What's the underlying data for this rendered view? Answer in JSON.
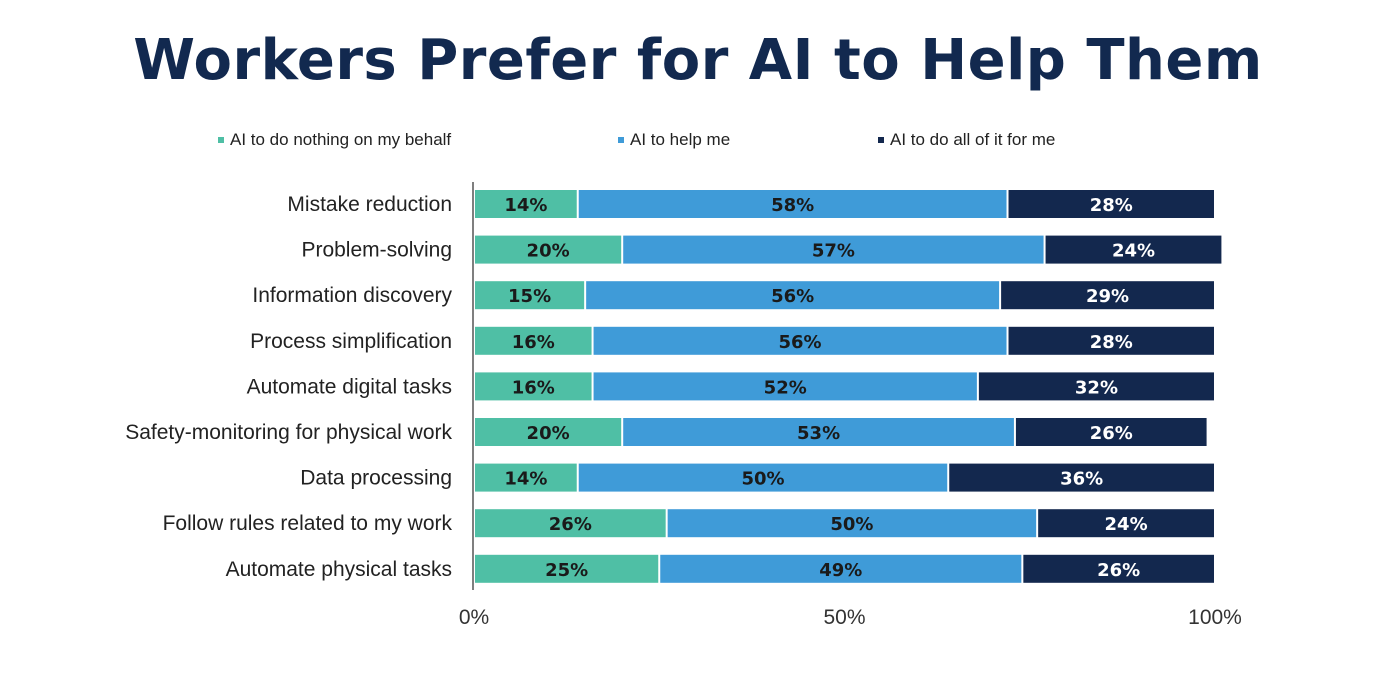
{
  "chart_data": {
    "type": "bar",
    "orientation": "horizontal",
    "stacked": true,
    "title": "Workers Prefer for AI to Help Them",
    "legend_position": "top",
    "categories": [
      "Mistake reduction",
      "Problem-solving",
      "Information discovery",
      "Process simplification",
      "Automate digital tasks",
      "Safety-monitoring for physical work",
      "Data processing",
      "Follow rules related to my work",
      "Automate physical tasks"
    ],
    "series": [
      {
        "name": "AI to do nothing on my behalf",
        "color": "#4fbfa5",
        "label_color": "#1a1a1a",
        "values": [
          14,
          20,
          15,
          16,
          16,
          20,
          14,
          26,
          25
        ]
      },
      {
        "name": "AI to help me",
        "color": "#3f9bd8",
        "label_color": "#1a1a1a",
        "values": [
          58,
          57,
          56,
          56,
          52,
          53,
          50,
          50,
          49
        ]
      },
      {
        "name": "AI to do all of it for me",
        "color": "#13284e",
        "label_color": "#ffffff",
        "values": [
          28,
          24,
          29,
          28,
          32,
          26,
          36,
          24,
          26
        ]
      }
    ],
    "value_suffix": "%",
    "xlim": [
      0,
      100
    ],
    "x_ticks": [
      0,
      50,
      100
    ],
    "x_tick_labels": [
      "0%",
      "50%",
      "100%"
    ],
    "grid": false
  }
}
